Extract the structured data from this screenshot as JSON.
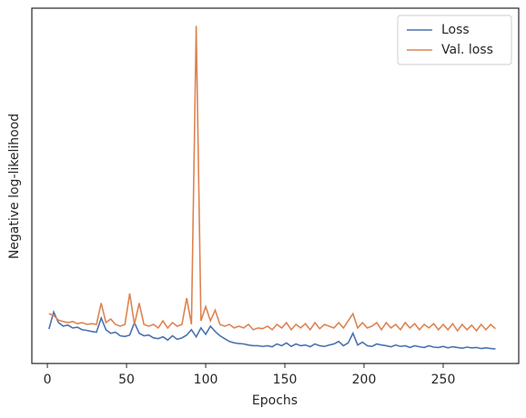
{
  "chart_data": {
    "type": "line",
    "x_label": "Epochs",
    "y_label": "Negative log-likelihood",
    "x": [
      1,
      4,
      7,
      10,
      13,
      16,
      19,
      22,
      25,
      28,
      31,
      34,
      37,
      40,
      43,
      46,
      49,
      52,
      55,
      58,
      61,
      64,
      67,
      70,
      73,
      76,
      79,
      82,
      85,
      88,
      91,
      94,
      97,
      100,
      103,
      106,
      109,
      112,
      115,
      118,
      121,
      124,
      127,
      130,
      133,
      136,
      139,
      142,
      145,
      148,
      151,
      154,
      157,
      160,
      163,
      166,
      169,
      172,
      175,
      178,
      181,
      184,
      187,
      190,
      193,
      196,
      199,
      202,
      205,
      208,
      211,
      214,
      217,
      220,
      223,
      226,
      229,
      232,
      235,
      238,
      241,
      244,
      247,
      250,
      253,
      256,
      259,
      262,
      265,
      268,
      271,
      274,
      277,
      280,
      283
    ],
    "series": [
      {
        "name": "Loss",
        "color": "#4c72b0",
        "values": [
          0.97,
          1.45,
          1.15,
          1.05,
          1.08,
          1.0,
          1.02,
          0.95,
          0.93,
          0.9,
          0.88,
          1.28,
          0.95,
          0.85,
          0.88,
          0.78,
          0.76,
          0.8,
          1.15,
          0.85,
          0.78,
          0.8,
          0.72,
          0.7,
          0.75,
          0.66,
          0.78,
          0.68,
          0.72,
          0.8,
          0.95,
          0.75,
          1.0,
          0.82,
          1.05,
          0.9,
          0.78,
          0.7,
          0.62,
          0.58,
          0.56,
          0.55,
          0.52,
          0.5,
          0.5,
          0.48,
          0.5,
          0.47,
          0.55,
          0.5,
          0.58,
          0.48,
          0.55,
          0.5,
          0.52,
          0.47,
          0.55,
          0.5,
          0.48,
          0.52,
          0.55,
          0.62,
          0.5,
          0.58,
          0.85,
          0.52,
          0.6,
          0.5,
          0.48,
          0.55,
          0.52,
          0.5,
          0.47,
          0.52,
          0.48,
          0.5,
          0.45,
          0.5,
          0.47,
          0.45,
          0.5,
          0.46,
          0.45,
          0.48,
          0.44,
          0.47,
          0.45,
          0.43,
          0.46,
          0.44,
          0.45,
          0.42,
          0.44,
          0.42,
          0.41
        ]
      },
      {
        "name": "Val. loss",
        "color": "#dd8452",
        "values": [
          1.4,
          1.35,
          1.22,
          1.18,
          1.15,
          1.18,
          1.12,
          1.15,
          1.1,
          1.12,
          1.1,
          1.7,
          1.15,
          1.25,
          1.1,
          1.05,
          1.1,
          1.97,
          1.1,
          1.7,
          1.1,
          1.05,
          1.1,
          1.0,
          1.2,
          1.0,
          1.15,
          1.05,
          1.1,
          1.84,
          1.1,
          9.5,
          1.2,
          1.6,
          1.2,
          1.5,
          1.1,
          1.05,
          1.1,
          1.0,
          1.05,
          1.0,
          1.1,
          0.95,
          1.0,
          0.98,
          1.05,
          0.95,
          1.1,
          1.0,
          1.15,
          0.95,
          1.1,
          1.0,
          1.12,
          0.95,
          1.15,
          0.98,
          1.1,
          1.05,
          1.0,
          1.15,
          1.0,
          1.2,
          1.4,
          1.0,
          1.15,
          1.0,
          1.05,
          1.15,
          0.95,
          1.15,
          1.0,
          1.1,
          0.95,
          1.15,
          1.0,
          1.12,
          0.95,
          1.1,
          1.0,
          1.12,
          0.95,
          1.1,
          0.95,
          1.12,
          0.92,
          1.1,
          0.95,
          1.08,
          0.92,
          1.1,
          0.95,
          1.1,
          0.98
        ]
      }
    ],
    "xlim": [
      -9.8,
      297.7
    ],
    "xticks": [
      0,
      50,
      100,
      150,
      200,
      250
    ],
    "ylim": [
      0,
      10
    ],
    "legend": "upper right"
  }
}
